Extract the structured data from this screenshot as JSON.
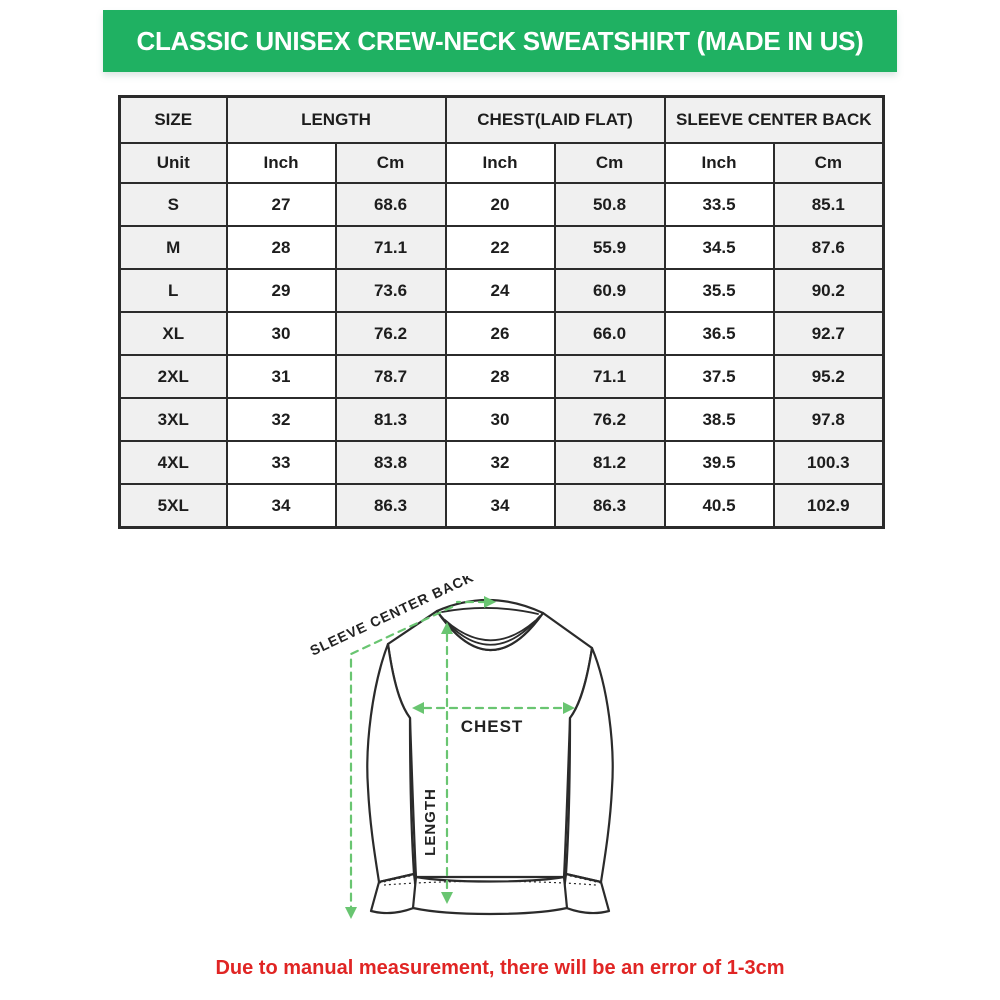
{
  "banner": {
    "title": "CLASSIC UNISEX CREW-NECK SWEATSHIRT (MADE IN US)"
  },
  "table": {
    "column_groups": [
      {
        "label": "SIZE",
        "span": 1
      },
      {
        "label": "LENGTH",
        "span": 2
      },
      {
        "label": "CHEST(LAID FLAT)",
        "span": 2
      },
      {
        "label": "SLEEVE CENTER BACK",
        "span": 2
      }
    ],
    "unit_row": [
      "Unit",
      "Inch",
      "Cm",
      "Inch",
      "Cm",
      "Inch",
      "Cm"
    ],
    "rows": [
      {
        "size": "S",
        "values": [
          "27",
          "68.6",
          "20",
          "50.8",
          "33.5",
          "85.1"
        ]
      },
      {
        "size": "M",
        "values": [
          "28",
          "71.1",
          "22",
          "55.9",
          "34.5",
          "87.6"
        ]
      },
      {
        "size": "L",
        "values": [
          "29",
          "73.6",
          "24",
          "60.9",
          "35.5",
          "90.2"
        ]
      },
      {
        "size": "XL",
        "values": [
          "30",
          "76.2",
          "26",
          "66.0",
          "36.5",
          "92.7"
        ]
      },
      {
        "size": "2XL",
        "values": [
          "31",
          "78.7",
          "28",
          "71.1",
          "37.5",
          "95.2"
        ]
      },
      {
        "size": "3XL",
        "values": [
          "32",
          "81.3",
          "30",
          "76.2",
          "38.5",
          "97.8"
        ]
      },
      {
        "size": "4XL",
        "values": [
          "33",
          "83.8",
          "32",
          "81.2",
          "39.5",
          "100.3"
        ]
      },
      {
        "size": "5XL",
        "values": [
          "34",
          "86.3",
          "34",
          "86.3",
          "40.5",
          "102.9"
        ]
      }
    ]
  },
  "diagram": {
    "labels": {
      "sleeve": "SLEEVE CENTER BACK",
      "chest": "CHEST",
      "length": "LENGTH"
    }
  },
  "footer": {
    "note": "Due to manual measurement, there will be an error of 1-3cm"
  },
  "colors": {
    "banner_green": "#1fb162",
    "note_red": "#e02524",
    "arrow_green": "#69c571",
    "cell_gray": "#f0f0f0",
    "line_dark": "#2b2b2b"
  }
}
